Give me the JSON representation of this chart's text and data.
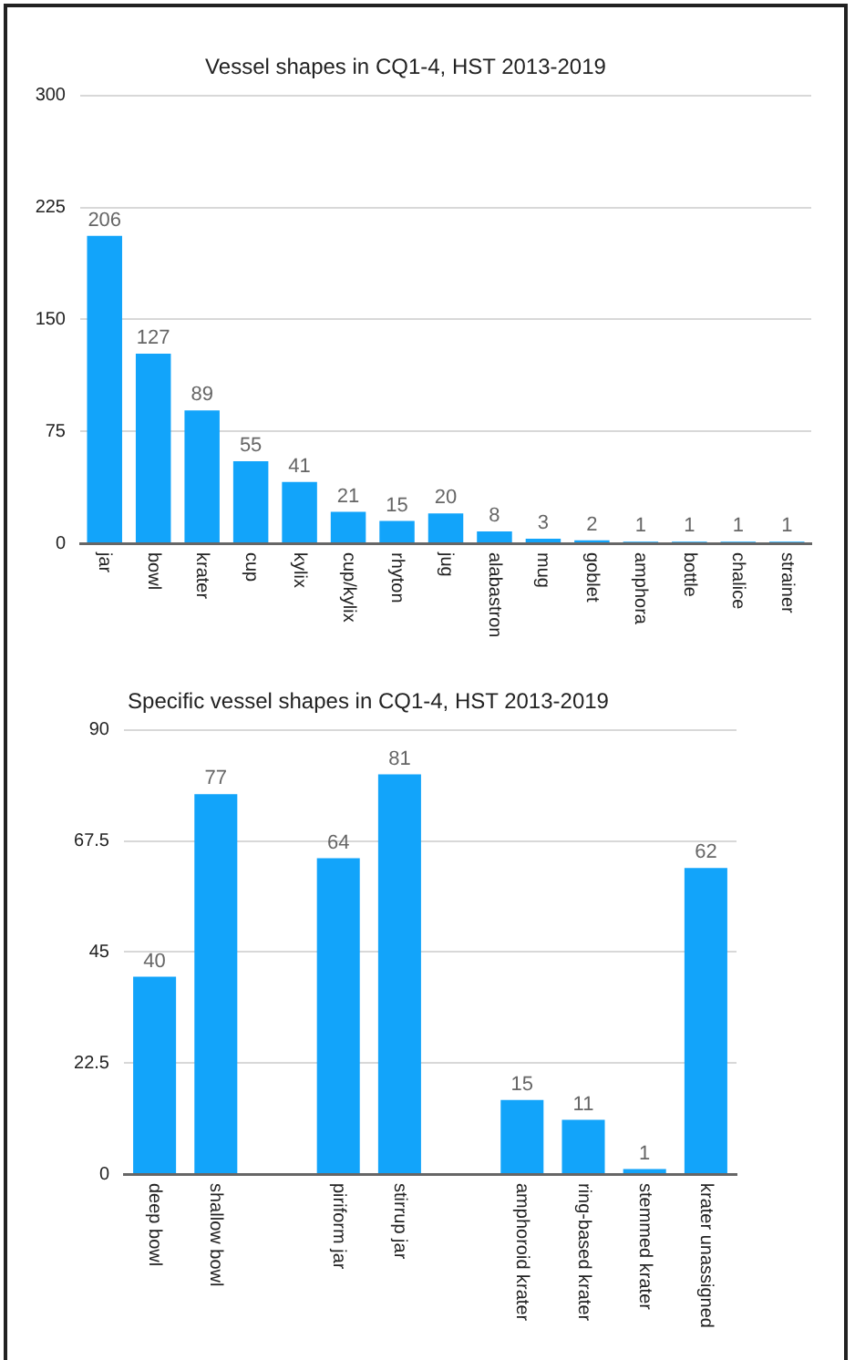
{
  "chart_data": [
    {
      "type": "bar",
      "title": "Vessel shapes in CQ1-4, HST 2013-2019",
      "categories": [
        "jar",
        "bowl",
        "krater",
        "cup",
        "kylix",
        "cup/kylix",
        "rhyton",
        "jug",
        "alabastron",
        "mug",
        "goblet",
        "amphora",
        "bottle",
        "chalice",
        "strainer"
      ],
      "values": [
        206,
        127,
        89,
        55,
        41,
        21,
        15,
        20,
        8,
        3,
        2,
        1,
        1,
        1,
        1
      ],
      "color": "#12a4fa",
      "ylim": [
        0,
        300
      ],
      "yticks": [
        0,
        75,
        150,
        225,
        300
      ],
      "grid": "y",
      "data_labels": true
    },
    {
      "type": "bar",
      "title": "Specific vessel shapes in CQ1-4, HST 2013-2019",
      "categories": [
        "deep bowl",
        "shallow bowl",
        null,
        "piriform jar",
        "stirrup jar",
        null,
        "amphoroid krater",
        "ring-based krater",
        "stemmed krater",
        "krater unassigned"
      ],
      "values": [
        40,
        77,
        null,
        64,
        81,
        null,
        15,
        11,
        1,
        62
      ],
      "color": "#12a4fa",
      "ylim": [
        0,
        90
      ],
      "yticks": [
        0,
        22.5,
        45,
        67.5,
        90
      ],
      "grid": "y",
      "data_labels": true
    }
  ]
}
